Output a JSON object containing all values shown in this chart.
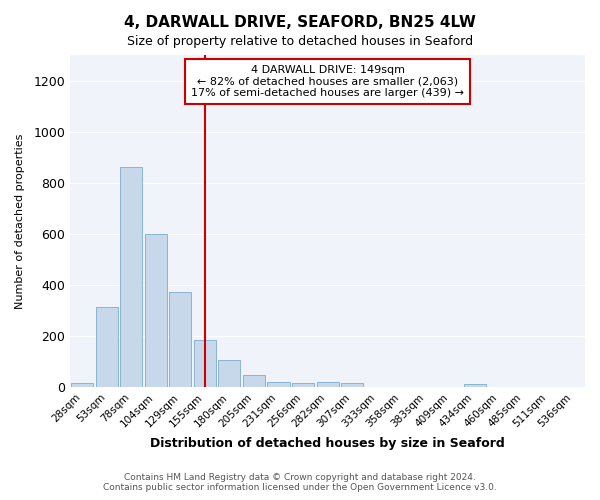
{
  "title": "4, DARWALL DRIVE, SEAFORD, BN25 4LW",
  "subtitle": "Size of property relative to detached houses in Seaford",
  "xlabel": "Distribution of detached houses by size in Seaford",
  "ylabel": "Number of detached properties",
  "bin_labels": [
    "28sqm",
    "53sqm",
    "78sqm",
    "104sqm",
    "129sqm",
    "155sqm",
    "180sqm",
    "205sqm",
    "231sqm",
    "256sqm",
    "282sqm",
    "307sqm",
    "333sqm",
    "358sqm",
    "383sqm",
    "409sqm",
    "434sqm",
    "460sqm",
    "485sqm",
    "511sqm",
    "536sqm"
  ],
  "bar_values": [
    15,
    315,
    860,
    600,
    370,
    185,
    105,
    45,
    20,
    15,
    20,
    15,
    0,
    0,
    0,
    0,
    10,
    0,
    0,
    0,
    0
  ],
  "bar_color": "#c8d8eb",
  "bar_edgecolor": "#8ab4d4",
  "ylim": [
    0,
    1300
  ],
  "yticks": [
    0,
    200,
    400,
    600,
    800,
    1000,
    1200
  ],
  "vline_x": 5,
  "vline_color": "#cc0000",
  "annotation_text": "4 DARWALL DRIVE: 149sqm\n← 82% of detached houses are smaller (2,063)\n17% of semi-detached houses are larger (439) →",
  "annotation_box_color": "#ffffff",
  "annotation_box_edgecolor": "#cc0000",
  "footer_line1": "Contains HM Land Registry data © Crown copyright and database right 2024.",
  "footer_line2": "Contains public sector information licensed under the Open Government Licence v3.0.",
  "background_color": "#ffffff",
  "plot_background": "#f0f4fa",
  "grid_color": "#ffffff",
  "title_fontsize": 11,
  "subtitle_fontsize": 9,
  "xlabel_fontsize": 9,
  "ylabel_fontsize": 8,
  "tick_fontsize": 7.5,
  "annotation_fontsize": 8,
  "footer_fontsize": 6.5
}
